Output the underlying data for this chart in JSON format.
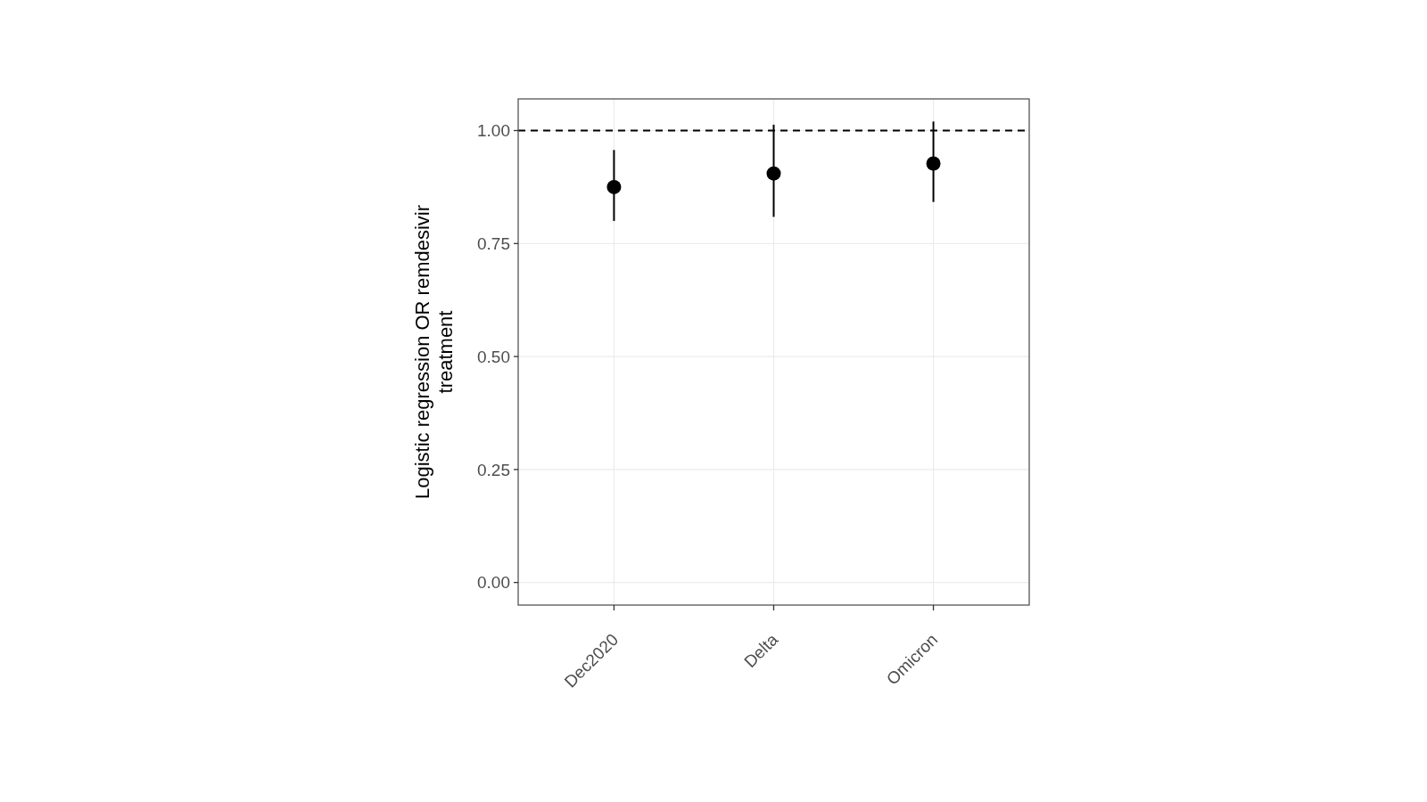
{
  "chart_data": {
    "type": "scatter",
    "ylabel": "Logistic regression OR remdesivir\ntreatment",
    "categories": [
      "Dec2020",
      "Delta",
      "Omicron"
    ],
    "values": [
      0.875,
      0.905,
      0.927
    ],
    "errors": [
      [
        0.8,
        0.957
      ],
      [
        0.809,
        1.013
      ],
      [
        0.842,
        1.02
      ]
    ],
    "color": "#000000",
    "marker": "circle",
    "ylim": [
      -0.05,
      1.07
    ],
    "yticks": [
      {
        "value": 0,
        "label": "0.00"
      },
      {
        "value": 0.25,
        "label": "0.25"
      },
      {
        "value": 0.5,
        "label": "0.50"
      },
      {
        "value": 0.75,
        "label": "0.75"
      },
      {
        "value": 1,
        "label": "1.00"
      }
    ],
    "grid": true,
    "ref_lines": [
      {
        "axis": "y",
        "value": 1,
        "line_style": "dashed",
        "color": "#000000"
      }
    ]
  }
}
